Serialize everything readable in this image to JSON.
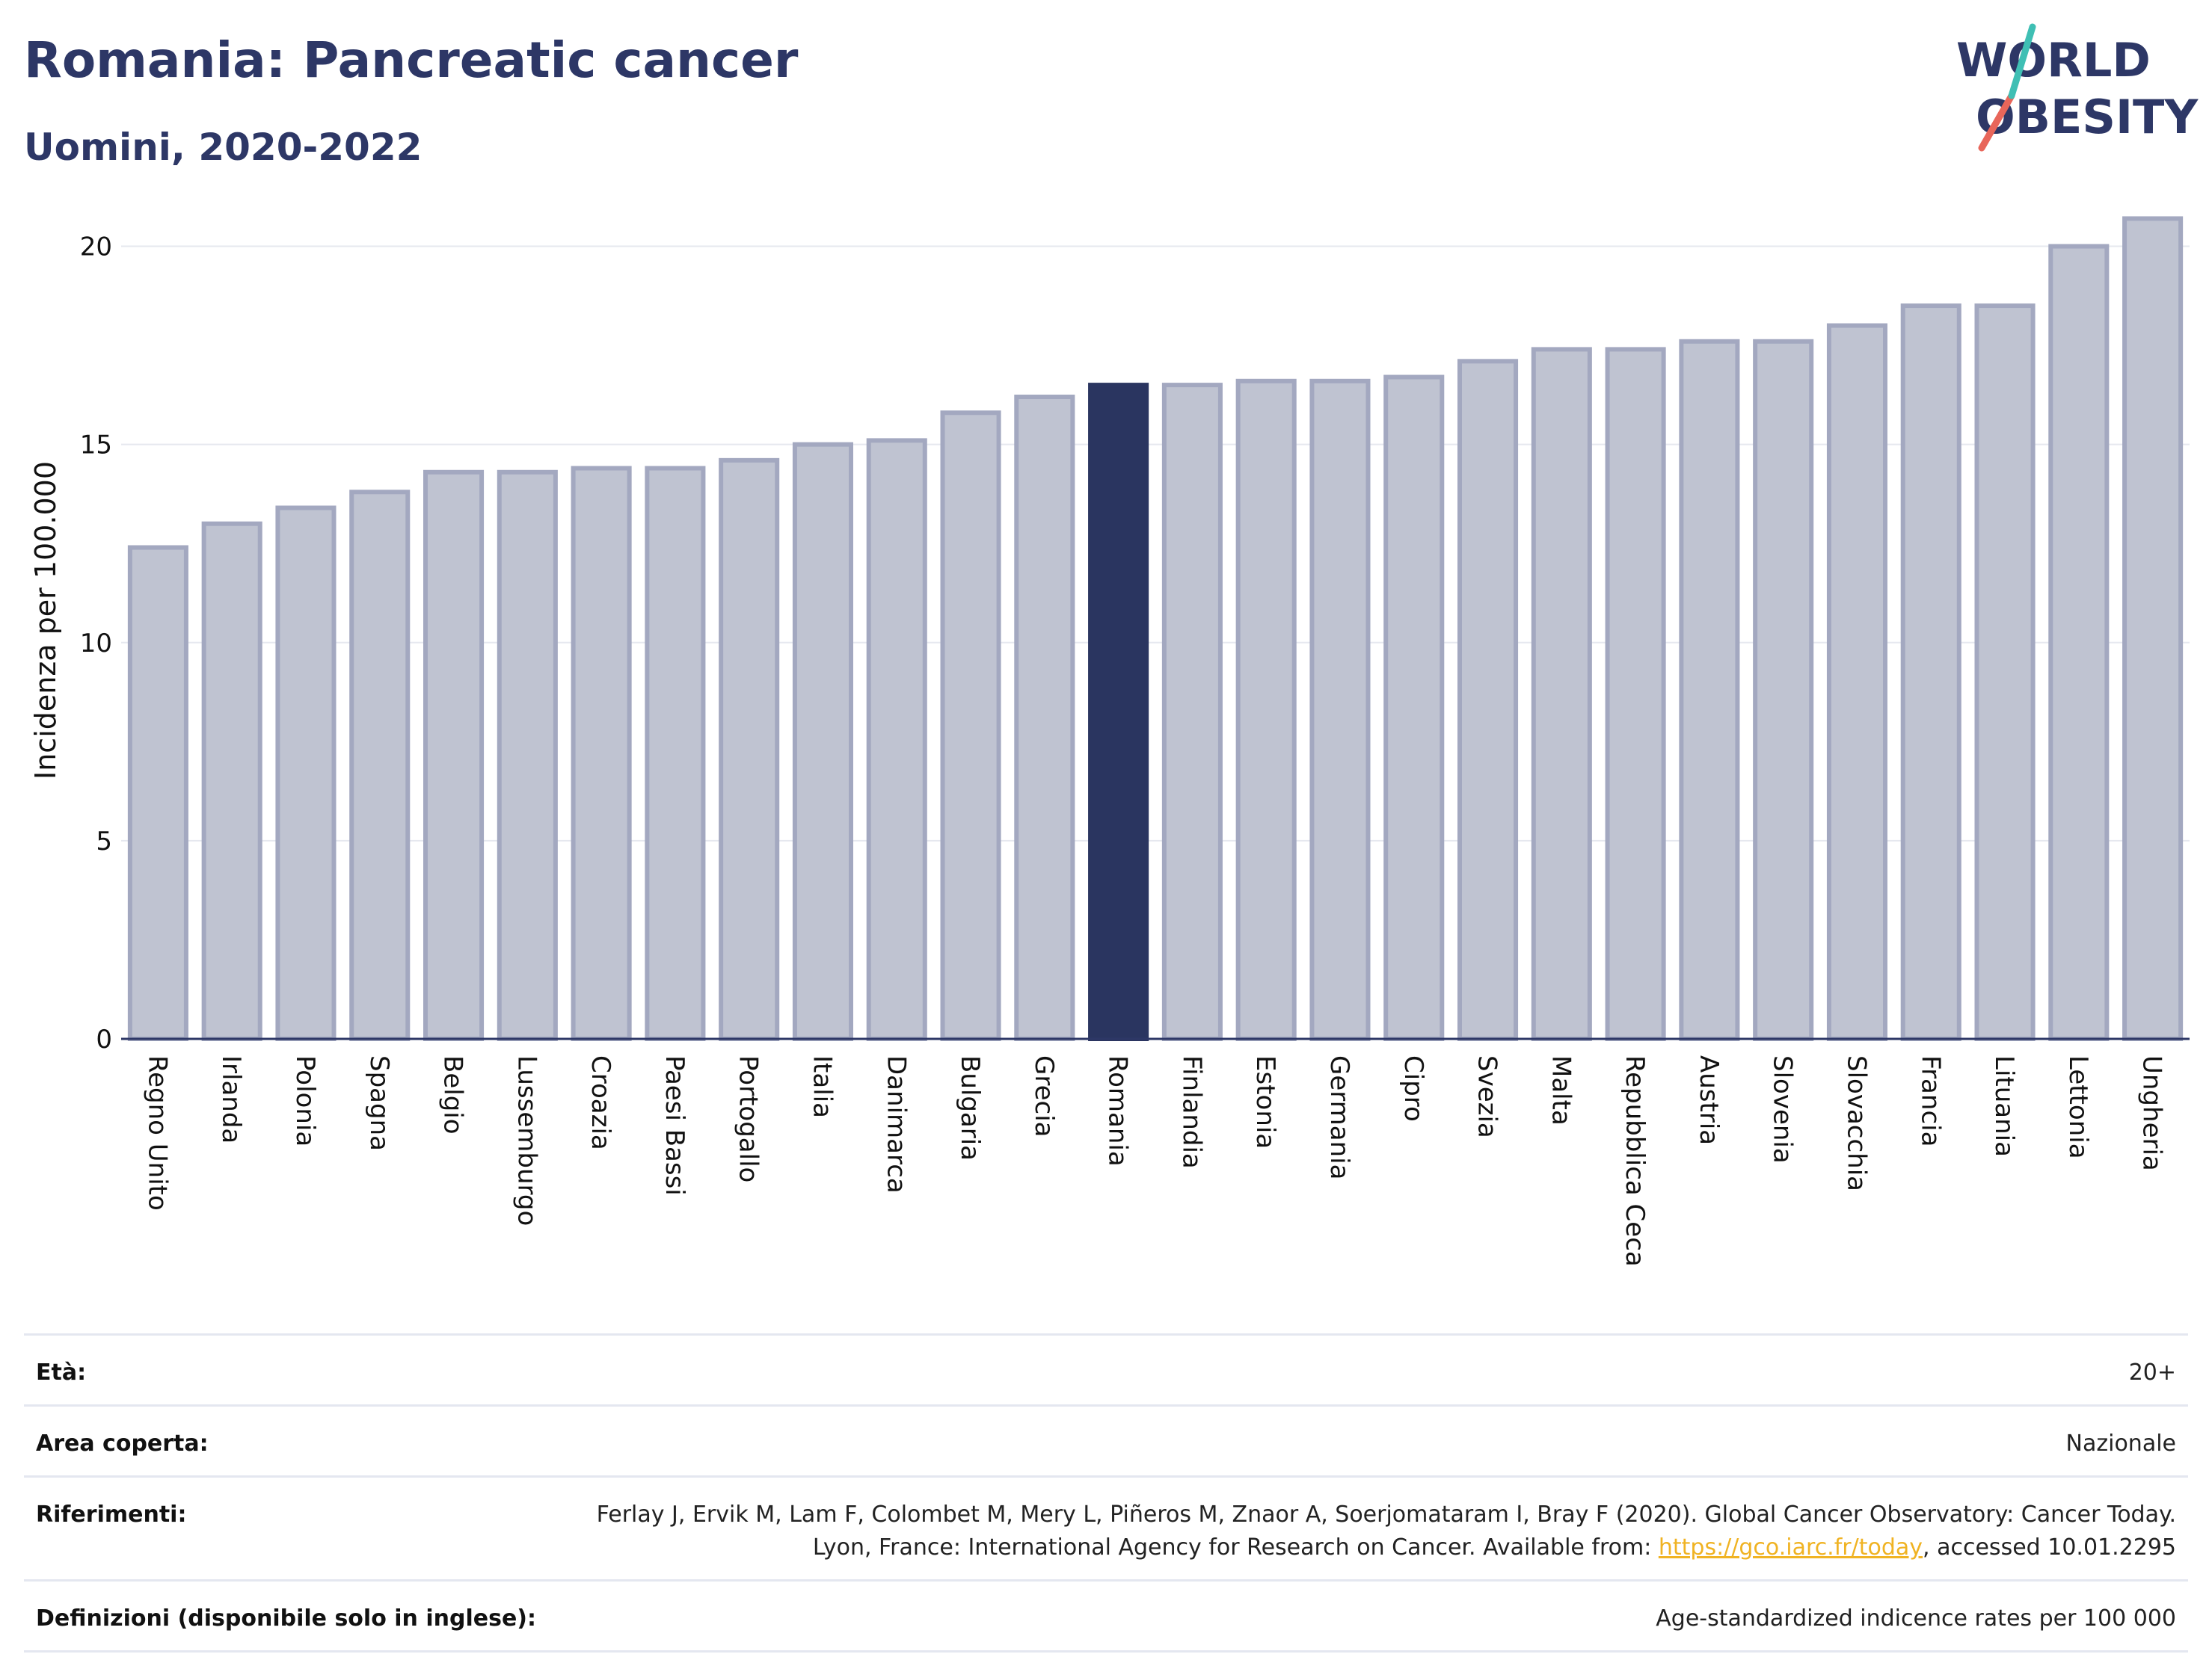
{
  "header": {
    "title": "Romania: Pancreatic cancer",
    "subtitle": "Uomini, 2020-2022"
  },
  "logo": {
    "line1": "WORLD",
    "line2": "OBESITY"
  },
  "chart_data": {
    "type": "bar",
    "ylabel": "Incidenza per 100.000",
    "ylim": [
      0,
      21.5
    ],
    "yticks": [
      0,
      5,
      10,
      15,
      20
    ],
    "grid": true,
    "highlight": "Romania",
    "categories": [
      "Regno Unito",
      "Irlanda",
      "Polonia",
      "Spagna",
      "Belgio",
      "Lussemburgo",
      "Croazia",
      "Paesi Bassi",
      "Portogallo",
      "Italia",
      "Danimarca",
      "Bulgaria",
      "Grecia",
      "Romania",
      "Finlandia",
      "Estonia",
      "Germania",
      "Cipro",
      "Svezia",
      "Malta",
      "Repubblica Ceca",
      "Austria",
      "Slovenia",
      "Slovacchia",
      "Francia",
      "Lituania",
      "Lettonia",
      "Ungheria"
    ],
    "values": [
      12.4,
      13.0,
      13.4,
      13.8,
      14.3,
      14.3,
      14.4,
      14.4,
      14.6,
      15.0,
      15.1,
      15.8,
      16.2,
      16.5,
      16.5,
      16.6,
      16.6,
      16.7,
      17.1,
      17.4,
      17.4,
      17.6,
      17.6,
      18.0,
      18.5,
      18.5,
      20.0,
      20.7
    ],
    "colors": {
      "bar": "#bfc3d1",
      "bar_border": "#a3a8c0",
      "highlight": "#2a3560"
    }
  },
  "meta": {
    "age_label": "Età:",
    "age_value": "20+",
    "area_label": "Area coperta:",
    "area_value": "Nazionale",
    "ref_label": "Riferimenti:",
    "ref_text_1": "Ferlay J, Ervik M, Lam F, Colombet M, Mery L, Piñeros M, Znaor A, Soerjomataram I, Bray F (2020). Global Cancer Observatory: Cancer Today. Lyon, France: International Agency for Research on Cancer. Available from: ",
    "ref_link": "https://gco.iarc.fr/today",
    "ref_text_2": ", accessed 10.01.2295",
    "def_label": "Definizioni (disponibile solo in inglese):",
    "def_value": "Age-standardized indicence rates per 100 000"
  }
}
